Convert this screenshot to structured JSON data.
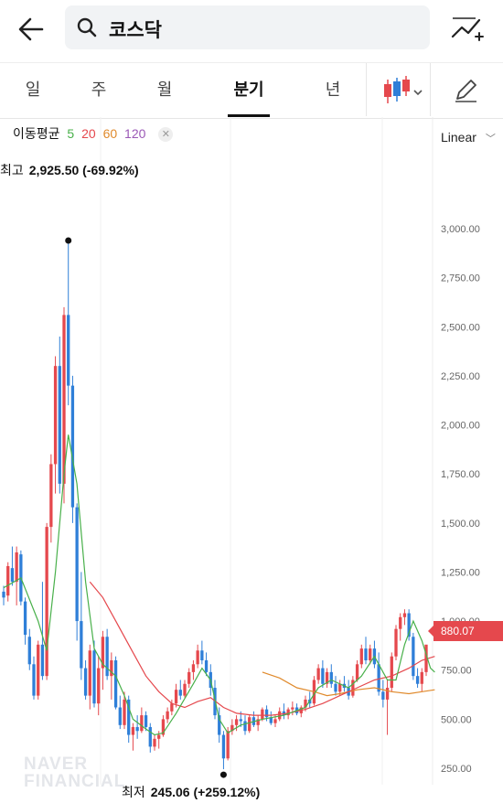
{
  "header": {
    "search_query": "코스닥"
  },
  "tabs": [
    {
      "label": "일",
      "active": false
    },
    {
      "label": "주",
      "active": false
    },
    {
      "label": "월",
      "active": false
    },
    {
      "label": "분기",
      "active": true
    },
    {
      "label": "년",
      "active": false
    }
  ],
  "moving_average": {
    "title": "이동평균",
    "periods": [
      "5",
      "20",
      "60",
      "120"
    ],
    "colors": [
      "#48b04a",
      "#e5484d",
      "#e08a2c",
      "#9b59b6"
    ]
  },
  "scale_label": "Linear",
  "colors": {
    "up": "#e5484d",
    "down": "#2f7fd8",
    "ma5": "#48b04a",
    "ma20": "#e5484d",
    "ma60": "#e08a2c"
  },
  "high": {
    "label": "최고",
    "value": "2,925.50 (-69.92%)"
  },
  "low": {
    "label": "최저",
    "value": "245.06 (+259.12%)"
  },
  "current_price": "880.07",
  "watermark": [
    "NAVER",
    "FINANCIAL"
  ],
  "chart_data": {
    "type": "candlestick",
    "y_ticks": [
      "3,000.00",
      "2,750.00",
      "2,500.00",
      "2,250.00",
      "2,000.00",
      "1,750.00",
      "1,500.00",
      "1,250.00",
      "1,000.00",
      "750.00",
      "500.00",
      "250.00"
    ],
    "ylim": [
      250,
      3000
    ],
    "candles": [
      [
        1150,
        1180,
        1080,
        1120
      ],
      [
        1130,
        1300,
        1100,
        1280
      ],
      [
        1270,
        1380,
        1180,
        1200
      ],
      [
        1200,
        1380,
        1080,
        1350
      ],
      [
        1340,
        1360,
        1080,
        1100
      ],
      [
        1100,
        1120,
        880,
        930
      ],
      [
        920,
        960,
        750,
        780
      ],
      [
        780,
        820,
        600,
        620
      ],
      [
        620,
        900,
        600,
        880
      ],
      [
        880,
        1200,
        700,
        720
      ],
      [
        720,
        1500,
        700,
        1480
      ],
      [
        1480,
        1850,
        1400,
        1800
      ],
      [
        1800,
        2350,
        1650,
        2300
      ],
      [
        2300,
        2450,
        1650,
        1700
      ],
      [
        1700,
        2600,
        1600,
        2560
      ],
      [
        2560,
        2930,
        2100,
        2200
      ],
      [
        2200,
        2250,
        1500,
        1580
      ],
      [
        1580,
        1600,
        900,
        1000
      ],
      [
        1000,
        1250,
        700,
        760
      ],
      [
        760,
        800,
        600,
        620
      ],
      [
        620,
        880,
        550,
        850
      ],
      [
        850,
        900,
        560,
        580
      ],
      [
        580,
        820,
        520,
        760
      ],
      [
        760,
        950,
        650,
        920
      ],
      [
        920,
        960,
        700,
        720
      ],
      [
        720,
        840,
        600,
        800
      ],
      [
        800,
        820,
        550,
        560
      ],
      [
        560,
        620,
        450,
        470
      ],
      [
        470,
        640,
        450,
        600
      ],
      [
        600,
        620,
        380,
        420
      ],
      [
        420,
        480,
        340,
        460
      ],
      [
        460,
        520,
        400,
        440
      ],
      [
        440,
        560,
        430,
        520
      ],
      [
        520,
        540,
        440,
        460
      ],
      [
        460,
        480,
        330,
        360
      ],
      [
        360,
        420,
        340,
        400
      ],
      [
        400,
        440,
        350,
        420
      ],
      [
        420,
        520,
        410,
        500
      ],
      [
        500,
        560,
        480,
        540
      ],
      [
        540,
        600,
        520,
        580
      ],
      [
        580,
        680,
        560,
        650
      ],
      [
        650,
        700,
        600,
        620
      ],
      [
        620,
        700,
        610,
        680
      ],
      [
        680,
        760,
        660,
        740
      ],
      [
        740,
        800,
        700,
        780
      ],
      [
        780,
        880,
        760,
        850
      ],
      [
        850,
        900,
        780,
        800
      ],
      [
        800,
        840,
        720,
        740
      ],
      [
        740,
        780,
        620,
        660
      ],
      [
        660,
        700,
        500,
        520
      ],
      [
        520,
        560,
        380,
        420
      ],
      [
        420,
        440,
        245,
        300
      ],
      [
        300,
        460,
        290,
        440
      ],
      [
        440,
        500,
        420,
        470
      ],
      [
        470,
        520,
        440,
        500
      ],
      [
        500,
        540,
        460,
        490
      ],
      [
        490,
        520,
        420,
        440
      ],
      [
        440,
        520,
        430,
        510
      ],
      [
        510,
        540,
        460,
        470
      ],
      [
        470,
        520,
        440,
        500
      ],
      [
        500,
        560,
        490,
        550
      ],
      [
        550,
        570,
        490,
        510
      ],
      [
        510,
        540,
        470,
        480
      ],
      [
        480,
        520,
        460,
        500
      ],
      [
        500,
        560,
        490,
        540
      ],
      [
        540,
        580,
        500,
        520
      ],
      [
        520,
        560,
        500,
        550
      ],
      [
        550,
        590,
        520,
        560
      ],
      [
        560,
        580,
        520,
        530
      ],
      [
        530,
        570,
        510,
        560
      ],
      [
        560,
        620,
        540,
        600
      ],
      [
        600,
        640,
        560,
        580
      ],
      [
        580,
        720,
        570,
        700
      ],
      [
        700,
        780,
        680,
        760
      ],
      [
        760,
        800,
        660,
        680
      ],
      [
        680,
        760,
        660,
        740
      ],
      [
        740,
        780,
        660,
        680
      ],
      [
        680,
        720,
        620,
        640
      ],
      [
        640,
        700,
        620,
        680
      ],
      [
        680,
        720,
        640,
        660
      ],
      [
        660,
        700,
        600,
        620
      ],
      [
        620,
        720,
        610,
        700
      ],
      [
        700,
        800,
        690,
        780
      ],
      [
        780,
        880,
        760,
        860
      ],
      [
        860,
        920,
        780,
        800
      ],
      [
        800,
        880,
        780,
        860
      ],
      [
        860,
        900,
        760,
        780
      ],
      [
        780,
        840,
        620,
        640
      ],
      [
        640,
        700,
        560,
        600
      ],
      [
        600,
        700,
        420,
        660
      ],
      [
        660,
        840,
        640,
        820
      ],
      [
        820,
        980,
        800,
        960
      ],
      [
        960,
        1040,
        900,
        1020
      ],
      [
        1020,
        1060,
        980,
        1040
      ],
      [
        1040,
        1060,
        900,
        920
      ],
      [
        920,
        940,
        700,
        720
      ],
      [
        720,
        760,
        660,
        680
      ],
      [
        680,
        760,
        640,
        740
      ],
      [
        740,
        880,
        720,
        880
      ]
    ],
    "ma5": [
      [
        0,
        1170
      ],
      [
        4,
        1220
      ],
      [
        8,
        1000
      ],
      [
        10,
        850
      ],
      [
        12,
        1250
      ],
      [
        14,
        1750
      ],
      [
        15,
        1950
      ],
      [
        17,
        1700
      ],
      [
        19,
        1200
      ],
      [
        21,
        860
      ],
      [
        23,
        780
      ],
      [
        26,
        720
      ],
      [
        28,
        620
      ],
      [
        30,
        500
      ],
      [
        33,
        450
      ],
      [
        35,
        420
      ],
      [
        37,
        430
      ],
      [
        40,
        530
      ],
      [
        44,
        680
      ],
      [
        46,
        760
      ],
      [
        48,
        700
      ],
      [
        50,
        500
      ],
      [
        52,
        430
      ],
      [
        55,
        470
      ],
      [
        60,
        500
      ],
      [
        65,
        520
      ],
      [
        70,
        560
      ],
      [
        73,
        660
      ],
      [
        76,
        700
      ],
      [
        80,
        660
      ],
      [
        83,
        720
      ],
      [
        86,
        820
      ],
      [
        89,
        700
      ],
      [
        91,
        700
      ],
      [
        93,
        880
      ],
      [
        95,
        1000
      ],
      [
        97,
        900
      ],
      [
        99,
        760
      ],
      [
        100,
        740
      ]
    ],
    "ma20": [
      [
        20,
        1200
      ],
      [
        23,
        1120
      ],
      [
        26,
        1000
      ],
      [
        30,
        840
      ],
      [
        33,
        720
      ],
      [
        36,
        640
      ],
      [
        39,
        580
      ],
      [
        42,
        560
      ],
      [
        45,
        590
      ],
      [
        48,
        610
      ],
      [
        51,
        560
      ],
      [
        54,
        530
      ],
      [
        58,
        520
      ],
      [
        62,
        520
      ],
      [
        66,
        530
      ],
      [
        70,
        550
      ],
      [
        74,
        580
      ],
      [
        78,
        620
      ],
      [
        82,
        660
      ],
      [
        86,
        700
      ],
      [
        90,
        720
      ],
      [
        94,
        760
      ],
      [
        97,
        800
      ],
      [
        100,
        820
      ]
    ],
    "ma60": [
      [
        60,
        740
      ],
      [
        64,
        710
      ],
      [
        68,
        660
      ],
      [
        72,
        640
      ],
      [
        75,
        620
      ],
      [
        78,
        630
      ],
      [
        82,
        650
      ],
      [
        86,
        660
      ],
      [
        90,
        640
      ],
      [
        94,
        630
      ],
      [
        97,
        640
      ],
      [
        100,
        650
      ]
    ]
  }
}
